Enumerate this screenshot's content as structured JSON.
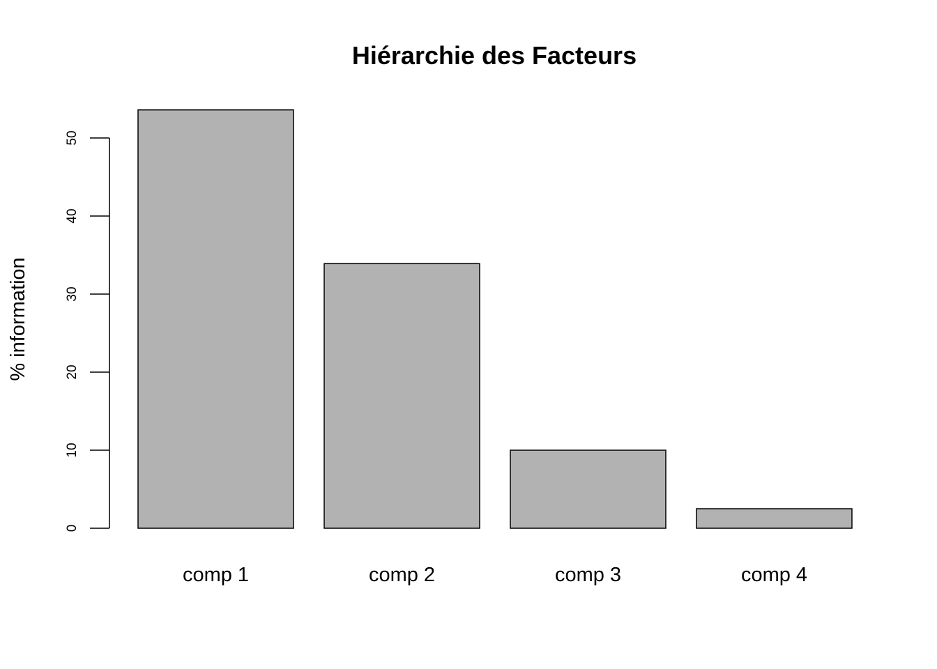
{
  "chart_data": {
    "type": "bar",
    "title": "Hiérarchie des Facteurs",
    "xlabel": "",
    "ylabel": "% information",
    "categories": [
      "comp 1",
      "comp 2",
      "comp 3",
      "comp 4"
    ],
    "values": [
      53.6,
      33.9,
      10.0,
      2.5
    ],
    "yticks": [
      0,
      10,
      20,
      30,
      40,
      50
    ],
    "ylim": [
      0,
      53.6
    ],
    "grid": false,
    "legend": "none",
    "bar_color": "#b2b2b2",
    "edge_color": "#000000"
  }
}
